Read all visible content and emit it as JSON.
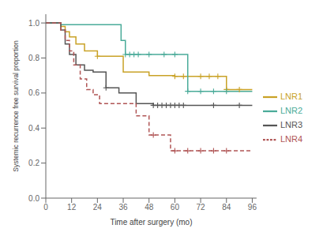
{
  "chart_data": {
    "type": "step",
    "xlabel": "Time after surgery (mo)",
    "ylabel": "Systemic recurrence free survival proportion",
    "xlim": [
      0,
      98
    ],
    "ylim": [
      0,
      1.05
    ],
    "xticks": [
      0,
      12,
      24,
      36,
      48,
      60,
      72,
      84,
      96
    ],
    "yticks": [
      {
        "value": 0,
        "label": "0.0"
      },
      0.2,
      0.4,
      0.6,
      0.8,
      {
        "value": 1,
        "label": "1.0"
      }
    ],
    "legend": "right",
    "series": [
      {
        "name": "LNR1",
        "color": "#c9a227",
        "line_style": "solid",
        "marker": "+",
        "x": [
          0,
          7,
          9,
          11,
          14,
          18,
          24,
          36,
          48,
          60,
          72,
          84,
          96
        ],
        "values": [
          1.0,
          0.98,
          0.95,
          0.92,
          0.88,
          0.84,
          0.81,
          0.72,
          0.7,
          0.695,
          0.695,
          0.62,
          0.62
        ],
        "censor_x": [
          24,
          60,
          64,
          72,
          76,
          80,
          84,
          90
        ],
        "censor_y": [
          0.81,
          0.695,
          0.695,
          0.695,
          0.695,
          0.695,
          0.62,
          0.62
        ]
      },
      {
        "name": "LNR2",
        "color": "#4aab99",
        "line_style": "solid",
        "marker": "+",
        "x": [
          0,
          7,
          27,
          35,
          37,
          39,
          41,
          48,
          60,
          66,
          78,
          84,
          96
        ],
        "values": [
          1.0,
          0.99,
          0.99,
          0.9,
          0.82,
          0.82,
          0.82,
          0.82,
          0.82,
          0.61,
          0.61,
          0.61,
          0.61
        ],
        "censor_x": [
          37,
          39,
          41,
          43,
          48,
          55,
          60,
          66,
          72,
          78,
          84
        ],
        "censor_y": [
          0.82,
          0.82,
          0.82,
          0.82,
          0.82,
          0.82,
          0.82,
          0.61,
          0.61,
          0.61,
          0.61
        ]
      },
      {
        "name": "LNR3",
        "color": "#555555",
        "line_style": "solid",
        "marker": "+",
        "x": [
          0,
          7,
          9,
          11,
          14,
          18,
          22,
          28,
          34,
          42,
          50,
          96
        ],
        "values": [
          1.0,
          0.96,
          0.88,
          0.82,
          0.76,
          0.73,
          0.72,
          0.63,
          0.6,
          0.54,
          0.53,
          0.53
        ],
        "censor_x": [
          28,
          50,
          52,
          54,
          56,
          58,
          60,
          62,
          64,
          78,
          90
        ],
        "censor_y": [
          0.63,
          0.53,
          0.53,
          0.53,
          0.53,
          0.53,
          0.53,
          0.53,
          0.53,
          0.53,
          0.53
        ]
      },
      {
        "name": "LNR4",
        "color": "#b05555",
        "line_style": "dashed",
        "marker": "+",
        "x": [
          0,
          7,
          9,
          11,
          13,
          16,
          19,
          22,
          25,
          36,
          42,
          48,
          58,
          66,
          96
        ],
        "values": [
          1.0,
          0.96,
          0.9,
          0.84,
          0.76,
          0.68,
          0.62,
          0.59,
          0.54,
          0.54,
          0.47,
          0.36,
          0.27,
          0.27,
          0.27
        ],
        "censor_x": [
          50,
          60,
          66,
          72,
          78,
          84
        ],
        "censor_y": [
          0.36,
          0.27,
          0.27,
          0.27,
          0.27,
          0.27
        ]
      }
    ]
  }
}
